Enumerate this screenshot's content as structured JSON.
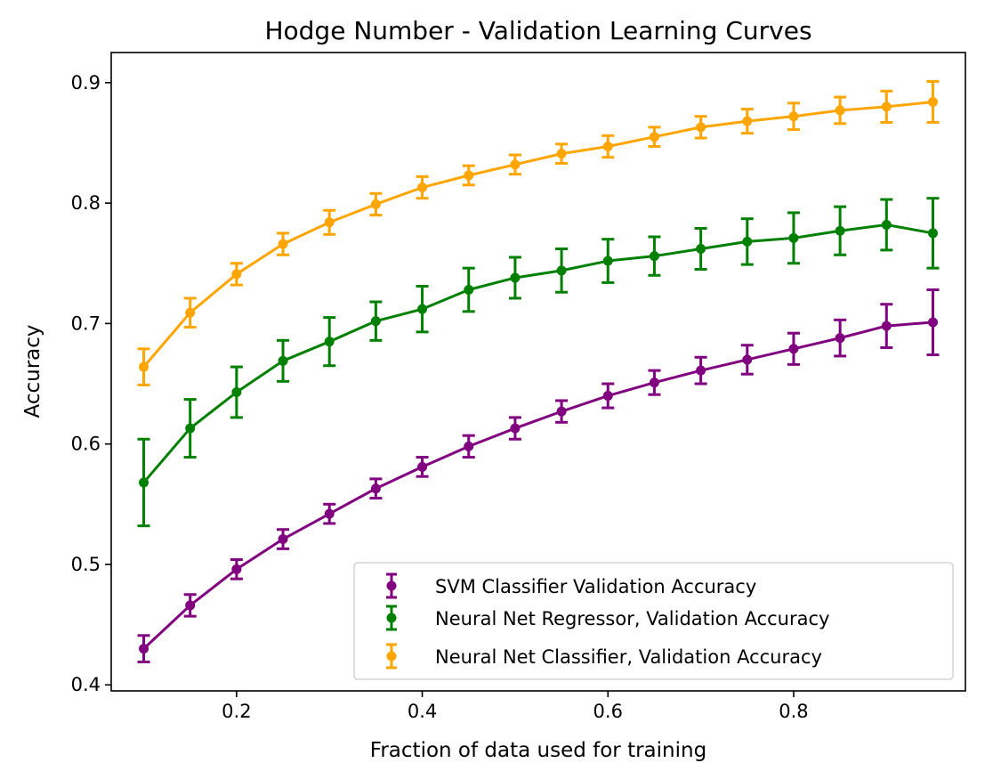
{
  "chart_data": {
    "type": "line",
    "title": "Hodge Number - Validation Learning Curves",
    "xlabel": "Fraction of data used for training",
    "ylabel": "Accuracy",
    "xlim": [
      0.065,
      0.985
    ],
    "ylim": [
      0.395,
      0.925
    ],
    "xticks": [
      0.2,
      0.4,
      0.6,
      0.8
    ],
    "xtick_labels": [
      "0.2",
      "0.4",
      "0.6",
      "0.8"
    ],
    "yticks": [
      0.4,
      0.5,
      0.6,
      0.7,
      0.8,
      0.9
    ],
    "ytick_labels": [
      "0.4",
      "0.5",
      "0.6",
      "0.7",
      "0.8",
      "0.9"
    ],
    "grid": false,
    "legend_position": "bottom-right",
    "x": [
      0.1,
      0.15,
      0.2,
      0.25,
      0.3,
      0.35,
      0.4,
      0.45,
      0.5,
      0.55,
      0.6,
      0.65,
      0.7,
      0.75,
      0.8,
      0.85,
      0.9,
      0.95
    ],
    "series": [
      {
        "name": "SVM Classifier Validation Accuracy",
        "color": "#800080",
        "values": [
          0.43,
          0.466,
          0.496,
          0.521,
          0.542,
          0.563,
          0.581,
          0.598,
          0.613,
          0.627,
          0.64,
          0.651,
          0.661,
          0.67,
          0.679,
          0.688,
          0.698,
          0.701
        ],
        "errors": [
          0.011,
          0.009,
          0.008,
          0.008,
          0.008,
          0.008,
          0.008,
          0.009,
          0.009,
          0.009,
          0.01,
          0.01,
          0.011,
          0.012,
          0.013,
          0.015,
          0.018,
          0.027
        ]
      },
      {
        "name": "Neural Net Regressor, Validation Accuracy",
        "color": "#008000",
        "values": [
          0.568,
          0.613,
          0.643,
          0.669,
          0.685,
          0.702,
          0.712,
          0.728,
          0.738,
          0.744,
          0.752,
          0.756,
          0.762,
          0.768,
          0.771,
          0.777,
          0.782,
          0.775
        ],
        "errors": [
          0.036,
          0.024,
          0.021,
          0.017,
          0.02,
          0.016,
          0.019,
          0.018,
          0.017,
          0.018,
          0.018,
          0.016,
          0.017,
          0.019,
          0.021,
          0.02,
          0.021,
          0.029
        ]
      },
      {
        "name": "Neural Net Classifier, Validation Accuracy",
        "color": "#FFA500",
        "values": [
          0.664,
          0.709,
          0.741,
          0.766,
          0.784,
          0.799,
          0.813,
          0.823,
          0.832,
          0.841,
          0.847,
          0.855,
          0.863,
          0.868,
          0.872,
          0.877,
          0.88,
          0.884
        ],
        "errors": [
          0.015,
          0.012,
          0.009,
          0.009,
          0.01,
          0.009,
          0.009,
          0.008,
          0.008,
          0.008,
          0.009,
          0.008,
          0.009,
          0.01,
          0.011,
          0.011,
          0.013,
          0.017
        ]
      }
    ]
  }
}
